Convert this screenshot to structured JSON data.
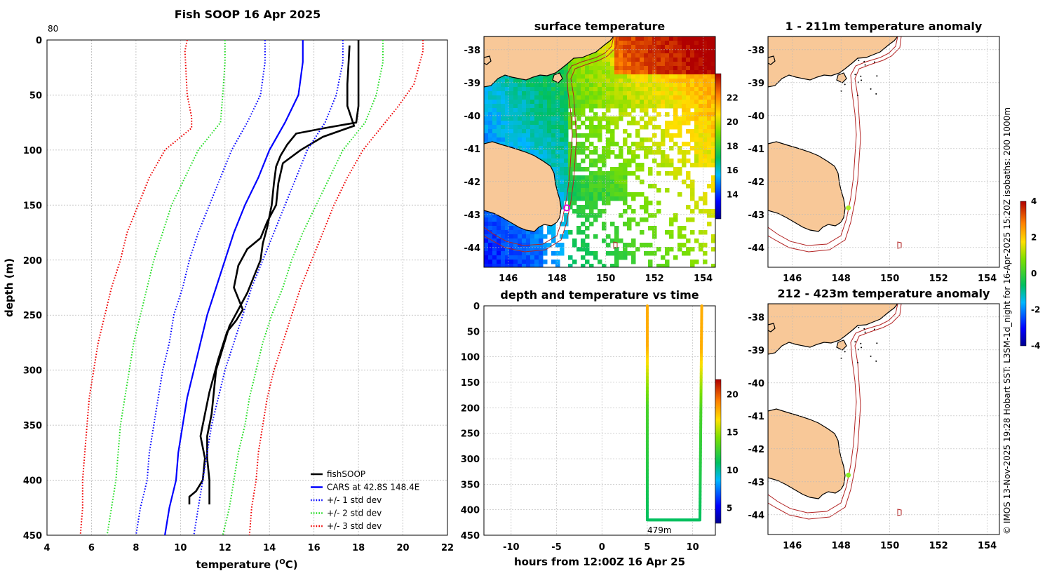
{
  "colors": {
    "land": "#f8c898",
    "isobath": "#b22222",
    "coast": "#000000",
    "grid": "#b8b8b8"
  },
  "chart_data": [
    {
      "type": "line",
      "title": "Fish SOOP 16 Apr 2025",
      "corner_label": "80",
      "xlabel": "temperature (",
      "xlabel_sup": "O",
      "xlabel_end": "C)",
      "ylabel": "depth (m)",
      "xlim": [
        4,
        22
      ],
      "ylim": [
        0,
        450
      ],
      "y_inverted": true,
      "xticks": [
        4,
        6,
        8,
        10,
        12,
        14,
        16,
        18,
        20,
        22
      ],
      "yticks": [
        0,
        50,
        100,
        150,
        200,
        250,
        300,
        350,
        400,
        450
      ],
      "legend": [
        "fishSOOP",
        "CARS at 42.8S 148.4E",
        "+/- 1 std dev",
        "+/- 2 std dev",
        "+/- 3 std dev"
      ],
      "legend_position": "bottom-right",
      "series": [
        {
          "name": "fishSOOP down",
          "color": "#000000",
          "style": "solid",
          "points": [
            [
              18.0,
              0
            ],
            [
              18.0,
              30
            ],
            [
              18.0,
              60
            ],
            [
              17.9,
              75
            ],
            [
              16.5,
              80
            ],
            [
              15.2,
              85
            ],
            [
              14.8,
              95
            ],
            [
              14.5,
              105
            ],
            [
              14.3,
              115
            ],
            [
              14.2,
              130
            ],
            [
              14.1,
              150
            ],
            [
              13.9,
              170
            ],
            [
              13.7,
              185
            ],
            [
              13.6,
              200
            ],
            [
              13.3,
              215
            ],
            [
              13.0,
              230
            ],
            [
              12.6,
              245
            ],
            [
              12.2,
              260
            ],
            [
              11.9,
              280
            ],
            [
              11.6,
              300
            ],
            [
              11.5,
              320
            ],
            [
              11.4,
              340
            ],
            [
              11.2,
              360
            ],
            [
              11.2,
              380
            ],
            [
              11.3,
              400
            ],
            [
              11.3,
              422
            ]
          ]
        },
        {
          "name": "fishSOOP up",
          "color": "#000000",
          "style": "solid",
          "points": [
            [
              10.4,
              422
            ],
            [
              10.4,
              415
            ],
            [
              10.7,
              410
            ],
            [
              11.0,
              400
            ],
            [
              11.1,
              380
            ],
            [
              10.9,
              360
            ],
            [
              11.1,
              340
            ],
            [
              11.3,
              320
            ],
            [
              11.7,
              290
            ],
            [
              12.1,
              265
            ],
            [
              12.5,
              255
            ],
            [
              12.8,
              245
            ],
            [
              12.4,
              225
            ],
            [
              12.6,
              205
            ],
            [
              13.0,
              190
            ],
            [
              13.6,
              180
            ],
            [
              13.9,
              165
            ],
            [
              14.3,
              150
            ],
            [
              14.4,
              130
            ],
            [
              14.6,
              112
            ],
            [
              15.4,
              100
            ],
            [
              16.4,
              88
            ],
            [
              17.8,
              78
            ],
            [
              17.5,
              60
            ],
            [
              17.5,
              40
            ],
            [
              17.6,
              5
            ]
          ]
        },
        {
          "name": "CARS at 42.8S 148.4E",
          "color": "#0000ff",
          "style": "solid",
          "points": [
            [
              15.5,
              0
            ],
            [
              15.5,
              20
            ],
            [
              15.3,
              50
            ],
            [
              14.7,
              75
            ],
            [
              14.0,
              100
            ],
            [
              13.5,
              125
            ],
            [
              12.9,
              150
            ],
            [
              12.4,
              175
            ],
            [
              12.0,
              200
            ],
            [
              11.6,
              225
            ],
            [
              11.2,
              250
            ],
            [
              10.9,
              275
            ],
            [
              10.6,
              300
            ],
            [
              10.3,
              325
            ],
            [
              10.1,
              350
            ],
            [
              9.9,
              375
            ],
            [
              9.8,
              400
            ],
            [
              9.5,
              425
            ],
            [
              9.3,
              450
            ]
          ]
        },
        {
          "name": "+/- 1 std dev low",
          "color": "#0000ff",
          "style": "dotted",
          "points": [
            [
              13.8,
              0
            ],
            [
              13.8,
              20
            ],
            [
              13.6,
              50
            ],
            [
              13.0,
              75
            ],
            [
              12.3,
              100
            ],
            [
              11.8,
              125
            ],
            [
              11.3,
              150
            ],
            [
              10.8,
              175
            ],
            [
              10.4,
              200
            ],
            [
              10.1,
              225
            ],
            [
              9.7,
              250
            ],
            [
              9.5,
              275
            ],
            [
              9.2,
              300
            ],
            [
              9.0,
              325
            ],
            [
              8.8,
              350
            ],
            [
              8.6,
              375
            ],
            [
              8.5,
              400
            ],
            [
              8.2,
              425
            ],
            [
              8.0,
              450
            ]
          ]
        },
        {
          "name": "+/- 1 std dev high",
          "color": "#0000ff",
          "style": "dotted",
          "points": [
            [
              17.3,
              0
            ],
            [
              17.3,
              20
            ],
            [
              17.0,
              50
            ],
            [
              16.5,
              75
            ],
            [
              15.7,
              100
            ],
            [
              15.2,
              125
            ],
            [
              14.7,
              150
            ],
            [
              14.2,
              175
            ],
            [
              13.7,
              200
            ],
            [
              13.2,
              225
            ],
            [
              12.8,
              250
            ],
            [
              12.4,
              275
            ],
            [
              12.0,
              300
            ],
            [
              11.7,
              325
            ],
            [
              11.4,
              350
            ],
            [
              11.2,
              375
            ],
            [
              11.0,
              400
            ],
            [
              10.8,
              425
            ],
            [
              10.6,
              450
            ]
          ]
        },
        {
          "name": "+/- 2 std dev low",
          "color": "#22dd22",
          "style": "dotted",
          "points": [
            [
              12.0,
              0
            ],
            [
              12.0,
              20
            ],
            [
              11.9,
              50
            ],
            [
              11.8,
              75
            ],
            [
              10.8,
              100
            ],
            [
              10.2,
              125
            ],
            [
              9.6,
              150
            ],
            [
              9.2,
              175
            ],
            [
              8.8,
              200
            ],
            [
              8.5,
              225
            ],
            [
              8.2,
              250
            ],
            [
              7.9,
              275
            ],
            [
              7.7,
              300
            ],
            [
              7.5,
              325
            ],
            [
              7.3,
              350
            ],
            [
              7.2,
              375
            ],
            [
              7.1,
              400
            ],
            [
              6.9,
              425
            ],
            [
              6.7,
              450
            ]
          ]
        },
        {
          "name": "+/- 2 std dev high",
          "color": "#22dd22",
          "style": "dotted",
          "points": [
            [
              19.1,
              0
            ],
            [
              19.1,
              20
            ],
            [
              18.8,
              50
            ],
            [
              18.3,
              75
            ],
            [
              17.3,
              100
            ],
            [
              16.7,
              125
            ],
            [
              16.1,
              150
            ],
            [
              15.5,
              175
            ],
            [
              15.0,
              200
            ],
            [
              14.6,
              225
            ],
            [
              14.1,
              250
            ],
            [
              13.7,
              275
            ],
            [
              13.4,
              300
            ],
            [
              13.1,
              325
            ],
            [
              12.9,
              350
            ],
            [
              12.6,
              375
            ],
            [
              12.4,
              400
            ],
            [
              12.2,
              425
            ],
            [
              11.9,
              450
            ]
          ]
        },
        {
          "name": "+/- 3 std dev low",
          "color": "#ee0000",
          "style": "dotted",
          "points": [
            [
              10.3,
              0
            ],
            [
              10.2,
              10
            ],
            [
              10.3,
              50
            ],
            [
              10.5,
              70
            ],
            [
              10.5,
              80
            ],
            [
              9.3,
              100
            ],
            [
              8.6,
              125
            ],
            [
              8.1,
              150
            ],
            [
              7.6,
              175
            ],
            [
              7.3,
              200
            ],
            [
              6.9,
              225
            ],
            [
              6.6,
              250
            ],
            [
              6.3,
              275
            ],
            [
              6.1,
              300
            ],
            [
              5.9,
              325
            ],
            [
              5.8,
              350
            ],
            [
              5.7,
              375
            ],
            [
              5.6,
              400
            ],
            [
              5.6,
              425
            ],
            [
              5.5,
              450
            ]
          ]
        },
        {
          "name": "+/- 3 std dev high",
          "color": "#ee0000",
          "style": "dotted",
          "points": [
            [
              20.9,
              0
            ],
            [
              20.9,
              10
            ],
            [
              20.5,
              40
            ],
            [
              19.8,
              60
            ],
            [
              19.0,
              80
            ],
            [
              18.2,
              100
            ],
            [
              17.5,
              125
            ],
            [
              16.9,
              150
            ],
            [
              16.4,
              175
            ],
            [
              15.9,
              200
            ],
            [
              15.4,
              225
            ],
            [
              15.0,
              250
            ],
            [
              14.6,
              275
            ],
            [
              14.2,
              300
            ],
            [
              13.9,
              325
            ],
            [
              13.7,
              350
            ],
            [
              13.5,
              375
            ],
            [
              13.4,
              400
            ],
            [
              13.2,
              425
            ],
            [
              13.1,
              450
            ]
          ]
        }
      ]
    },
    {
      "type": "heatmap",
      "title": "surface temperature",
      "xlim": [
        145,
        154.5
      ],
      "ylim": [
        -44.6,
        -37.6
      ],
      "xticks": [
        146,
        148,
        150,
        152,
        154
      ],
      "yticks": [
        -38,
        -39,
        -40,
        -41,
        -42,
        -43,
        -44
      ],
      "colorbar": {
        "ticks": [
          14,
          16,
          18,
          20,
          22
        ],
        "range": [
          12,
          24
        ]
      },
      "marker": {
        "lon": 148.4,
        "lat": -42.8,
        "color": "#dd00dd"
      }
    },
    {
      "type": "scatter",
      "title": "depth and temperature vs time",
      "xlabel": "hours from 12:00Z 16 Apr 25",
      "xlim": [
        -13,
        12.5
      ],
      "ylim": [
        0,
        450
      ],
      "y_inverted": true,
      "xticks": [
        -10,
        -5,
        0,
        5,
        10
      ],
      "yticks": [
        0,
        50,
        100,
        150,
        200,
        250,
        300,
        350,
        400,
        450
      ],
      "colorbar": {
        "ticks": [
          5,
          10,
          15,
          20
        ],
        "range": [
          3,
          22
        ]
      },
      "annotation": "479m",
      "segments": [
        {
          "t0": 5.0,
          "t1": 5.0,
          "d0": 0,
          "d1": 420
        },
        {
          "t0": 5.0,
          "t1": 10.8,
          "d0": 420,
          "d1": 420
        },
        {
          "t0": 10.8,
          "t1": 11.0,
          "d0": 420,
          "d1": 0
        }
      ]
    },
    {
      "type": "heatmap",
      "title": "1 - 211m temperature anomaly",
      "xlim": [
        145,
        154.5
      ],
      "ylim": [
        -44.6,
        -37.6
      ],
      "xticks": [
        146,
        148,
        150,
        152,
        154
      ],
      "yticks": [
        -38,
        -39,
        -40,
        -41,
        -42,
        -43,
        -44
      ],
      "marker": {
        "lon": 148.3,
        "lat": -42.8,
        "color": "#aaee22"
      }
    },
    {
      "type": "heatmap",
      "title": "212 - 423m temperature anomaly",
      "xlim": [
        145,
        154.5
      ],
      "ylim": [
        -44.6,
        -37.6
      ],
      "xticks": [
        146,
        148,
        150,
        152,
        154
      ],
      "yticks": [
        -38,
        -39,
        -40,
        -41,
        -42,
        -43,
        -44
      ],
      "marker": {
        "lon": 148.3,
        "lat": -42.8,
        "color": "#88ee22"
      }
    }
  ],
  "anomaly_colorbar": {
    "ticks": [
      4,
      2,
      0,
      -2,
      -4
    ]
  },
  "side_text": "© IMOS 13-Nov-2025 19:28 Hobart SST: L3SM-1d_night for 16-Apr-2025 15:20Z isobaths: 200  1000m"
}
